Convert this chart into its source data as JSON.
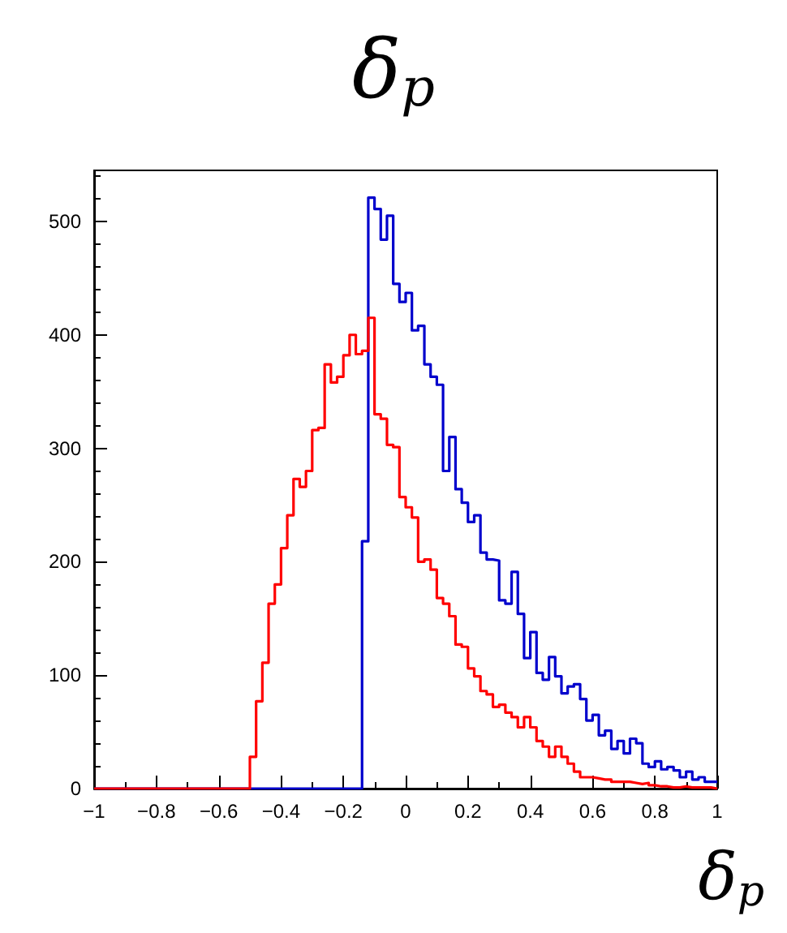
{
  "chart_data": {
    "type": "histogram",
    "title": "δ$_{p}$",
    "xlabel": "δ$_{p}$",
    "bins": [
      -1,
      -0.98,
      -0.96,
      -0.94,
      -0.92,
      -0.9,
      -0.88,
      -0.86,
      -0.84,
      -0.82,
      -0.8,
      -0.78,
      -0.76,
      -0.74,
      -0.72,
      -0.7,
      -0.68,
      -0.66,
      -0.64,
      -0.62,
      -0.6,
      -0.58,
      -0.56,
      -0.54,
      -0.52,
      -0.5,
      -0.48,
      -0.46,
      -0.44,
      -0.42,
      -0.4,
      -0.38,
      -0.36,
      -0.34,
      -0.32,
      -0.3,
      -0.28,
      -0.26,
      -0.24,
      -0.22,
      -0.2,
      -0.18,
      -0.16,
      -0.14,
      -0.12,
      -0.1,
      -0.08,
      -0.06,
      -0.04,
      -0.02,
      0,
      0.02,
      0.04,
      0.06,
      0.08,
      0.1,
      0.12,
      0.14,
      0.16,
      0.18,
      0.2,
      0.22,
      0.24,
      0.26,
      0.28,
      0.3,
      0.32,
      0.34,
      0.36,
      0.38,
      0.4,
      0.42,
      0.44,
      0.46,
      0.48,
      0.5,
      0.52,
      0.54,
      0.56,
      0.58,
      0.6,
      0.62,
      0.64,
      0.66,
      0.68,
      0.7,
      0.72,
      0.74,
      0.76,
      0.78,
      0.8,
      0.82,
      0.84,
      0.86,
      0.88,
      0.9,
      0.92,
      0.94,
      0.96,
      0.98,
      1
    ],
    "series": [
      {
        "color": "#0000cc",
        "values": [
          0,
          0,
          0,
          0,
          0,
          0,
          0,
          0,
          0,
          0,
          0,
          0,
          0,
          0,
          0,
          0,
          0,
          0,
          0,
          0,
          0,
          0,
          0,
          0,
          0,
          0,
          0,
          0,
          0,
          0,
          0,
          0,
          0,
          0,
          0,
          0,
          0,
          0,
          0,
          0,
          0,
          0,
          0,
          218,
          521,
          511,
          484,
          505,
          445,
          429,
          437,
          404,
          408,
          374,
          363,
          356,
          280,
          310,
          264,
          252,
          235,
          241,
          208,
          202,
          201,
          166,
          163,
          191,
          154,
          115,
          138,
          102,
          96,
          116,
          99,
          84,
          90,
          92,
          79,
          60,
          65,
          47,
          51,
          35,
          42,
          31,
          44,
          40,
          22,
          19,
          24,
          17,
          19,
          16,
          10,
          15,
          8,
          10,
          6,
          6
        ]
      },
      {
        "color": "#ff0000",
        "values": [
          0,
          0,
          0,
          0,
          0,
          0,
          0,
          0,
          0,
          0,
          0,
          0,
          0,
          0,
          0,
          0,
          0,
          0,
          0,
          0,
          0,
          0,
          0,
          0,
          0,
          28,
          77,
          111,
          163,
          180,
          212,
          241,
          273,
          266,
          280,
          316,
          318,
          374,
          358,
          363,
          382,
          400,
          383,
          386,
          415,
          330,
          326,
          303,
          301,
          257,
          248,
          239,
          200,
          202,
          193,
          168,
          163,
          152,
          127,
          125,
          106,
          99,
          86,
          83,
          72,
          74,
          67,
          63,
          54,
          63,
          54,
          42,
          37,
          28,
          37,
          28,
          22,
          15,
          10,
          10,
          9,
          8,
          8,
          6,
          6,
          6,
          5,
          4,
          5,
          3,
          2,
          2,
          1,
          1,
          2,
          1,
          1,
          1,
          1,
          0
        ]
      }
    ],
    "xlim": [
      -1,
      1
    ],
    "xticks": [
      -1,
      -0.8,
      -0.6,
      -0.4,
      -0.2,
      0,
      0.2,
      0.4,
      0.6,
      0.8,
      1
    ],
    "ylim": [
      0,
      545
    ],
    "yticks": [
      0,
      100,
      200,
      300,
      400,
      500
    ],
    "grid": false
  }
}
